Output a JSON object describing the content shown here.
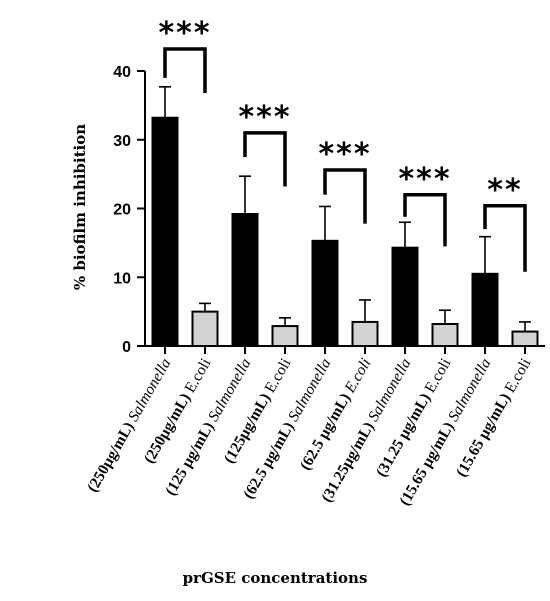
{
  "chart_data": {
    "type": "bar",
    "ylabel": "% biofilm inhibition",
    "xlabel": "prGSE concentrations",
    "ylim": [
      0,
      40
    ],
    "yticks": [
      "0",
      "10",
      "20",
      "30",
      "40"
    ],
    "grid": false,
    "colors": {
      "salmonella": "#000000",
      "ecoli": "#d3d3d3"
    },
    "bars": [
      {
        "label_bold": "(250µg/mL)",
        "label_rest": "Salmonella",
        "rest_style": "italic",
        "value": 33.2,
        "error": 4.5,
        "color": "salmonella"
      },
      {
        "label_bold": "(250µg/mL)",
        "label_rest": "E.coli",
        "rest_style": "normal",
        "value": 5.0,
        "error": 1.2,
        "color": "ecoli"
      },
      {
        "label_bold": "(125 µg/mL)",
        "label_rest": "Salmonella",
        "rest_style": "italic",
        "value": 19.2,
        "error": 5.5,
        "color": "salmonella"
      },
      {
        "label_bold": "(125µg/mL)",
        "label_rest": "E.coli",
        "rest_style": "normal",
        "value": 2.9,
        "error": 1.2,
        "color": "ecoli"
      },
      {
        "label_bold": "(62.5 µg/mL)",
        "label_rest": "Salmonella",
        "rest_style": "italic",
        "value": 15.3,
        "error": 5.0,
        "color": "salmonella"
      },
      {
        "label_bold": "(62.5 µg/mL)",
        "label_rest": "E.coli",
        "rest_style": "italic",
        "value": 3.5,
        "error": 3.2,
        "color": "ecoli"
      },
      {
        "label_bold": "(31.25µg/mL)",
        "label_rest": "Salmonella",
        "rest_style": "italic",
        "value": 14.3,
        "error": 3.7,
        "color": "salmonella"
      },
      {
        "label_bold": "(31.25 µg/mL)",
        "label_rest": "E.coli",
        "rest_style": "normal",
        "value": 3.2,
        "error": 2.0,
        "color": "ecoli"
      },
      {
        "label_bold": "(15.65 µg/mL)",
        "label_rest": "Salmonella",
        "rest_style": "italic",
        "value": 10.5,
        "error": 5.4,
        "color": "salmonella"
      },
      {
        "label_bold": "(15.65 µg/mL)",
        "label_rest": "E.coli",
        "rest_style": "normal",
        "value": 2.1,
        "error": 1.4,
        "color": "ecoli"
      }
    ],
    "significance": [
      {
        "pair": [
          0,
          1
        ],
        "text": "***",
        "top": 43.2,
        "left_end": 39.0,
        "right_end": 36.8
      },
      {
        "pair": [
          2,
          3
        ],
        "text": "***",
        "top": 31.0,
        "left_end": 27.5,
        "right_end": 23.2
      },
      {
        "pair": [
          4,
          5
        ],
        "text": "***",
        "top": 25.6,
        "left_end": 22.0,
        "right_end": 17.8
      },
      {
        "pair": [
          6,
          7
        ],
        "text": "***",
        "top": 22.0,
        "left_end": 18.8,
        "right_end": 14.5
      },
      {
        "pair": [
          8,
          9
        ],
        "text": "**",
        "top": 20.4,
        "left_end": 17.0,
        "right_end": 10.8
      }
    ]
  }
}
